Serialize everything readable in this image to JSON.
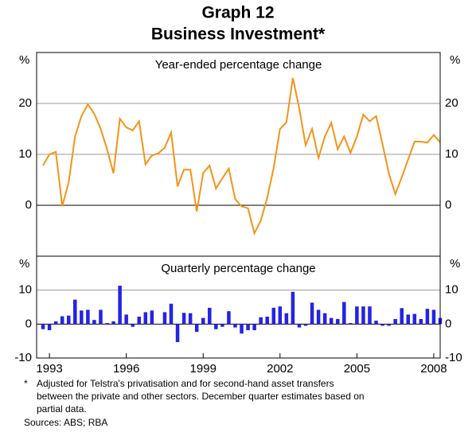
{
  "header": {
    "title": "Graph 12",
    "subtitle": "Business Investment*"
  },
  "chart_data": [
    {
      "type": "line",
      "title": "Year-ended percentage change",
      "unit": "%",
      "x": [
        1992.75,
        1993,
        1993.25,
        1993.5,
        1993.75,
        1994,
        1994.25,
        1994.5,
        1994.75,
        1995,
        1995.25,
        1995.5,
        1995.75,
        1996,
        1996.25,
        1996.5,
        1996.75,
        1997,
        1997.25,
        1997.5,
        1997.75,
        1998,
        1998.25,
        1998.5,
        1998.75,
        1999,
        1999.25,
        1999.5,
        1999.75,
        2000,
        2000.25,
        2000.5,
        2000.75,
        2001,
        2001.25,
        2001.5,
        2001.75,
        2002,
        2002.25,
        2002.5,
        2002.75,
        2003,
        2003.25,
        2003.5,
        2003.75,
        2004,
        2004.25,
        2004.5,
        2004.75,
        2005,
        2005.25,
        2005.5,
        2005.75,
        2006,
        2006.25,
        2006.5,
        2006.75,
        2007,
        2007.25,
        2007.5,
        2007.75,
        2008,
        2008.25
      ],
      "xlim": [
        1992.5,
        2008.25
      ],
      "ylim": [
        -10,
        30
      ],
      "yticks": [
        0,
        10,
        20
      ],
      "grid": true,
      "series": [
        {
          "color": "#f39419",
          "values": [
            7.8,
            10,
            10.5,
            -0.2,
            4.5,
            13.5,
            17.5,
            19.8,
            18,
            15,
            11,
            6.3,
            17,
            15.3,
            14.7,
            16.5,
            8,
            9.8,
            10.2,
            11.3,
            14.3,
            3.7,
            7,
            7,
            -1.2,
            6.3,
            7.8,
            3.3,
            5.3,
            7.2,
            1.2,
            -0.2,
            -0.6,
            -5.5,
            -3,
            1.5,
            7.3,
            15,
            16.3,
            25,
            19,
            11.8,
            15,
            9.3,
            13.5,
            16.2,
            11,
            13.5,
            10.3,
            13.5,
            17.8,
            16.5,
            17.5,
            12,
            6.2,
            2.2,
            5.5,
            9,
            12.5,
            12.5,
            12.3,
            13.8,
            12.4
          ]
        }
      ]
    },
    {
      "type": "bar",
      "title": "Quarterly percentage change",
      "unit": "%",
      "x": [
        1992.75,
        1993,
        1993.25,
        1993.5,
        1993.75,
        1994,
        1994.25,
        1994.5,
        1994.75,
        1995,
        1995.25,
        1995.5,
        1995.75,
        1996,
        1996.25,
        1996.5,
        1996.75,
        1997,
        1997.25,
        1997.5,
        1997.75,
        1998,
        1998.25,
        1998.5,
        1998.75,
        1999,
        1999.25,
        1999.5,
        1999.75,
        2000,
        2000.25,
        2000.5,
        2000.75,
        2001,
        2001.25,
        2001.5,
        2001.75,
        2002,
        2002.25,
        2002.5,
        2002.75,
        2003,
        2003.25,
        2003.5,
        2003.75,
        2004,
        2004.25,
        2004.5,
        2004.75,
        2005,
        2005.25,
        2005.5,
        2005.75,
        2006,
        2006.25,
        2006.5,
        2006.75,
        2007,
        2007.25,
        2007.5,
        2007.75,
        2008,
        2008.25
      ],
      "xlim": [
        1992.5,
        2008.25
      ],
      "xticks": [
        1993,
        1996,
        1999,
        2002,
        2005,
        2008
      ],
      "ylim": [
        -10,
        20
      ],
      "yticks": [
        -10,
        0,
        10
      ],
      "grid": true,
      "series": [
        {
          "color": "#2323e6",
          "values": [
            -1.5,
            -1.8,
            0.8,
            2.3,
            2.5,
            7.2,
            4,
            4.2,
            1.2,
            4.2,
            0.3,
            0.8,
            11.3,
            2.8,
            -0.8,
            2.2,
            3.5,
            4,
            0,
            3.5,
            6,
            -5.3,
            3.3,
            3.2,
            -2.3,
            1.8,
            4.8,
            -1.5,
            -0.8,
            3.8,
            -1,
            -2.8,
            -1.8,
            -1.8,
            2,
            2.2,
            4.8,
            5.2,
            3.2,
            9.5,
            -1,
            -0.5,
            6.3,
            4.2,
            3.2,
            1.8,
            1.5,
            6.5,
            0.3,
            5.2,
            5.2,
            5.2,
            1,
            -0.5,
            -0.5,
            1.5,
            4.7,
            2.8,
            3,
            1.5,
            4.5,
            4.2,
            1.8
          ]
        }
      ]
    }
  ],
  "footnote": {
    "marker": "*",
    "lines": [
      "Adjusted for Telstra's privatisation and for second-hand asset transfers",
      "between the private and other sectors. December quarter estimates based on",
      "partial data."
    ]
  },
  "sources": "Sources: ABS; RBA"
}
